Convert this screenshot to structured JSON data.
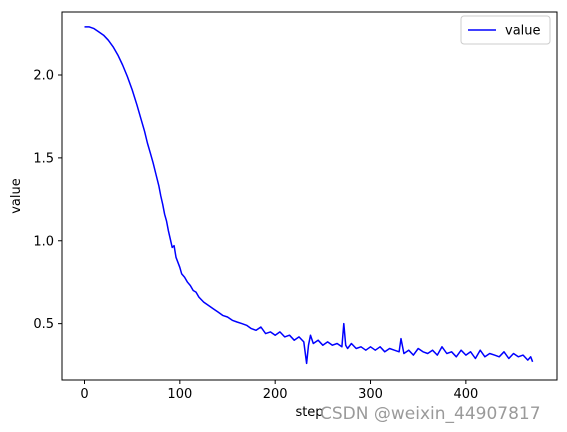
{
  "chart_data": {
    "type": "line",
    "title": "",
    "xlabel": "step",
    "ylabel": "value",
    "xlim": [
      -23.6,
      495.6
    ],
    "ylim": [
      0.16,
      2.38
    ],
    "xticks": [
      0,
      100,
      200,
      300,
      400
    ],
    "yticks": [
      0.5,
      1.0,
      1.5,
      2.0
    ],
    "grid": false,
    "legend_position": "top-right",
    "series": [
      {
        "name": "value",
        "color": "#0000ff",
        "x": [
          0,
          5,
          10,
          15,
          20,
          25,
          30,
          35,
          40,
          45,
          50,
          55,
          60,
          63,
          66,
          69,
          72,
          75,
          78,
          80,
          82,
          84,
          86,
          88,
          90,
          92,
          94,
          96,
          98,
          100,
          102,
          105,
          108,
          111,
          114,
          117,
          120,
          125,
          130,
          135,
          140,
          145,
          150,
          155,
          160,
          165,
          170,
          175,
          180,
          185,
          190,
          195,
          200,
          205,
          210,
          215,
          220,
          225,
          230,
          233,
          235,
          237,
          240,
          245,
          250,
          255,
          260,
          265,
          270,
          272,
          274,
          276,
          280,
          285,
          290,
          295,
          300,
          305,
          310,
          315,
          320,
          325,
          330,
          332,
          335,
          340,
          345,
          350,
          355,
          360,
          365,
          370,
          375,
          380,
          385,
          390,
          395,
          400,
          405,
          410,
          415,
          420,
          425,
          430,
          435,
          440,
          445,
          450,
          455,
          460,
          465,
          468,
          470
        ],
        "y": [
          2.29,
          2.29,
          2.28,
          2.26,
          2.24,
          2.21,
          2.17,
          2.12,
          2.06,
          1.99,
          1.91,
          1.82,
          1.72,
          1.66,
          1.59,
          1.53,
          1.47,
          1.4,
          1.33,
          1.27,
          1.22,
          1.16,
          1.12,
          1.06,
          1.01,
          0.96,
          0.97,
          0.9,
          0.87,
          0.84,
          0.8,
          0.78,
          0.75,
          0.73,
          0.7,
          0.69,
          0.66,
          0.63,
          0.61,
          0.59,
          0.57,
          0.55,
          0.54,
          0.52,
          0.51,
          0.5,
          0.49,
          0.47,
          0.46,
          0.48,
          0.44,
          0.45,
          0.43,
          0.45,
          0.42,
          0.43,
          0.4,
          0.42,
          0.39,
          0.26,
          0.37,
          0.43,
          0.38,
          0.4,
          0.37,
          0.39,
          0.37,
          0.38,
          0.36,
          0.5,
          0.37,
          0.35,
          0.38,
          0.35,
          0.36,
          0.34,
          0.36,
          0.34,
          0.36,
          0.33,
          0.35,
          0.34,
          0.33,
          0.41,
          0.32,
          0.34,
          0.31,
          0.35,
          0.33,
          0.32,
          0.34,
          0.31,
          0.36,
          0.32,
          0.33,
          0.3,
          0.34,
          0.31,
          0.33,
          0.29,
          0.34,
          0.3,
          0.32,
          0.31,
          0.3,
          0.33,
          0.29,
          0.32,
          0.3,
          0.31,
          0.28,
          0.3,
          0.27
        ]
      }
    ]
  },
  "watermark": "CSDN @weixin_44907817"
}
